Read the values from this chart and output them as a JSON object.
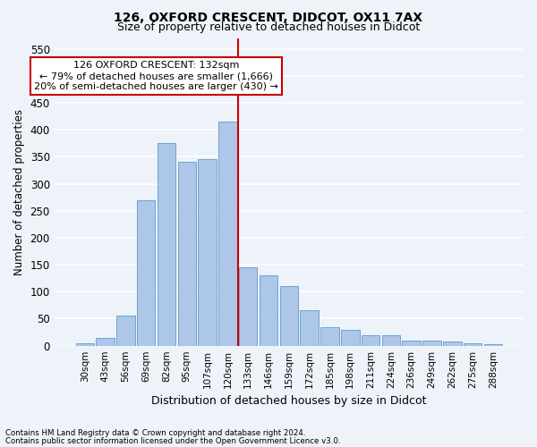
{
  "title1": "126, OXFORD CRESCENT, DIDCOT, OX11 7AX",
  "title2": "Size of property relative to detached houses in Didcot",
  "xlabel": "Distribution of detached houses by size in Didcot",
  "ylabel": "Number of detached properties",
  "categories": [
    "30sqm",
    "43sqm",
    "56sqm",
    "69sqm",
    "82sqm",
    "95sqm",
    "107sqm",
    "120sqm",
    "133sqm",
    "146sqm",
    "159sqm",
    "172sqm",
    "185sqm",
    "198sqm",
    "211sqm",
    "224sqm",
    "236sqm",
    "249sqm",
    "262sqm",
    "275sqm",
    "288sqm"
  ],
  "values": [
    5,
    15,
    55,
    270,
    375,
    340,
    345,
    415,
    145,
    130,
    110,
    65,
    35,
    30,
    20,
    20,
    10,
    10,
    8,
    5,
    2
  ],
  "bar_color": "#aec6e8",
  "bar_edge_color": "#5b9bd5",
  "highlight_index": 8,
  "ylim": [
    0,
    570
  ],
  "yticks": [
    0,
    50,
    100,
    150,
    200,
    250,
    300,
    350,
    400,
    450,
    500,
    550
  ],
  "annotation_text": "126 OXFORD CRESCENT: 132sqm\n← 79% of detached houses are smaller (1,666)\n20% of semi-detached houses are larger (430) →",
  "annotation_box_color": "#ffffff",
  "annotation_box_edge": "#cc0000",
  "footnote1": "Contains HM Land Registry data © Crown copyright and database right 2024.",
  "footnote2": "Contains public sector information licensed under the Open Government Licence v3.0.",
  "background_color": "#eef2f9",
  "grid_color": "#ffffff",
  "vline_color": "#cc0000"
}
